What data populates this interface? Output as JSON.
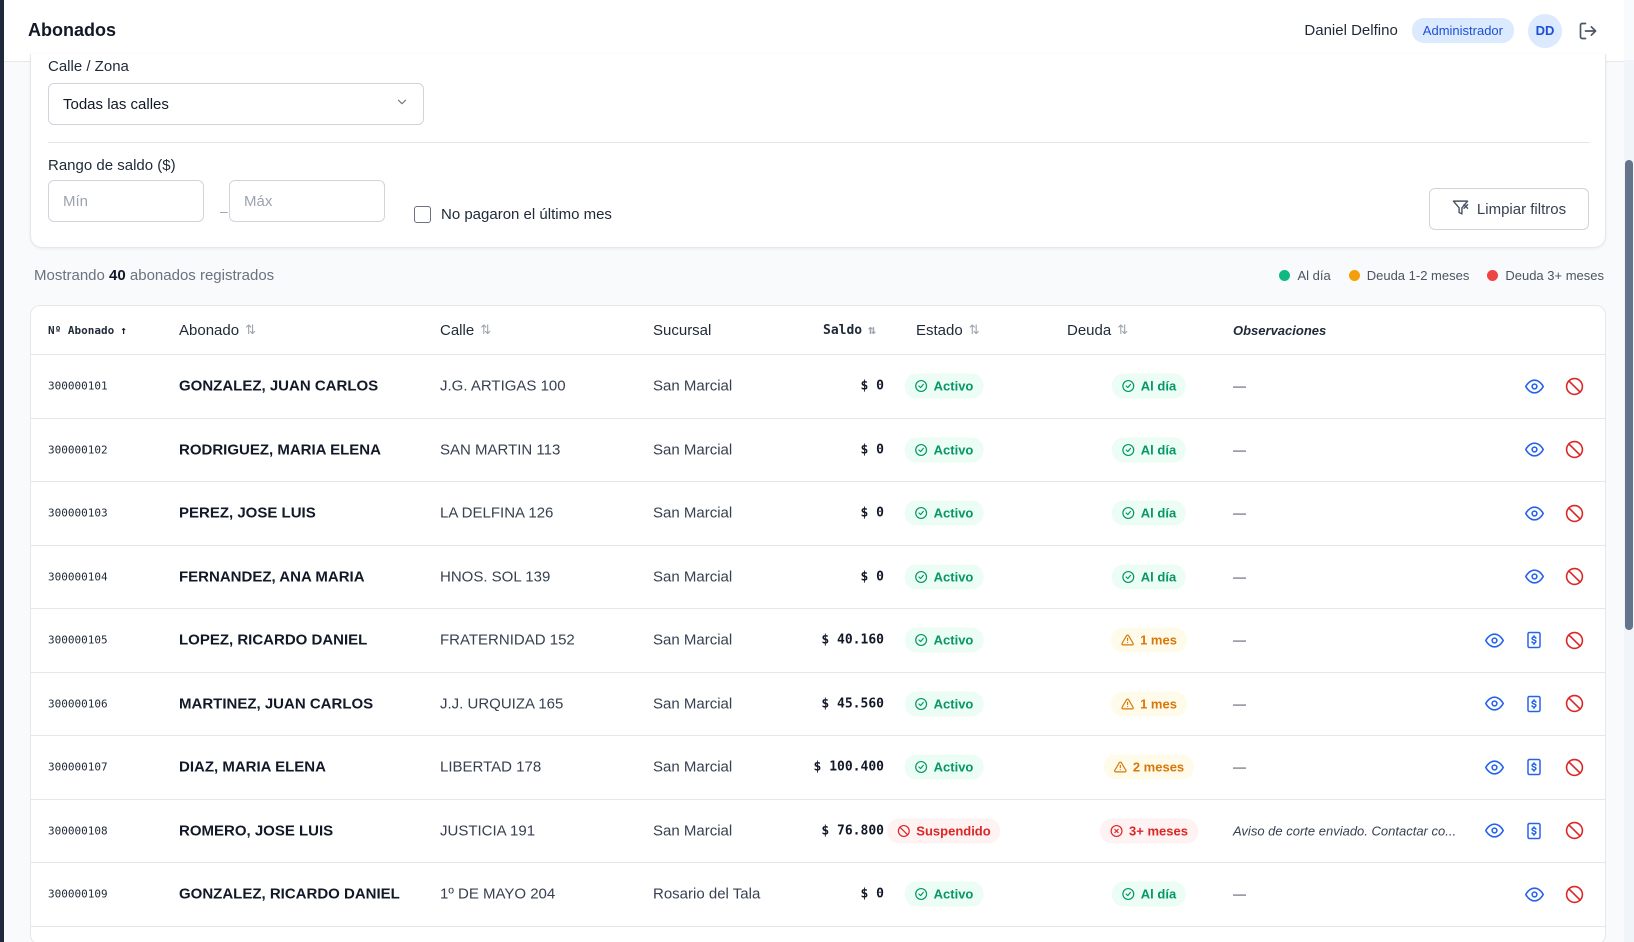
{
  "header": {
    "title": "Abonados",
    "user_name": "Daniel Delfino",
    "role": "Administrador",
    "avatar_initials": "DD"
  },
  "filters": {
    "street_label": "Calle / Zona",
    "street_value": "Todas las calles",
    "range_label": "Rango de saldo ($)",
    "min_placeholder": "Mín",
    "max_placeholder": "Máx",
    "range_separator": "–",
    "unpaid_label": "No pagaron el último mes",
    "clear_label": "Limpiar filtros"
  },
  "summary": {
    "prefix": "Mostrando",
    "count": "40",
    "suffix": "abonados registrados"
  },
  "legend": [
    {
      "label": "Al día",
      "color": "#10b981"
    },
    {
      "label": "Deuda 1-2 meses",
      "color": "#f59e0b"
    },
    {
      "label": "Deuda 3+ meses",
      "color": "#ef4444"
    }
  ],
  "columns": {
    "number": "Nº Abonado",
    "name": "Abonado",
    "street": "Calle",
    "branch": "Sucursal",
    "saldo": "Saldo",
    "estado": "Estado",
    "deuda": "Deuda",
    "obs": "Observaciones"
  },
  "rows": [
    {
      "number": "300000101",
      "name": "GONZALEZ, JUAN CARLOS",
      "street": "J.G. ARTIGAS 100",
      "branch": "San Marcial",
      "saldo": "$ 0",
      "estado": "Activo",
      "estado_type": "green",
      "deuda": "Al día",
      "deuda_type": "green",
      "obs": "—",
      "pay": false
    },
    {
      "number": "300000102",
      "name": "RODRIGUEZ, MARIA ELENA",
      "street": "SAN MARTIN 113",
      "branch": "San Marcial",
      "saldo": "$ 0",
      "estado": "Activo",
      "estado_type": "green",
      "deuda": "Al día",
      "deuda_type": "green",
      "obs": "—",
      "pay": false
    },
    {
      "number": "300000103",
      "name": "PEREZ, JOSE LUIS",
      "street": "LA DELFINA 126",
      "branch": "San Marcial",
      "saldo": "$ 0",
      "estado": "Activo",
      "estado_type": "green",
      "deuda": "Al día",
      "deuda_type": "green",
      "obs": "—",
      "pay": false
    },
    {
      "number": "300000104",
      "name": "FERNANDEZ, ANA MARIA",
      "street": "HNOS. SOL 139",
      "branch": "San Marcial",
      "saldo": "$ 0",
      "estado": "Activo",
      "estado_type": "green",
      "deuda": "Al día",
      "deuda_type": "green",
      "obs": "—",
      "pay": false
    },
    {
      "number": "300000105",
      "name": "LOPEZ, RICARDO DANIEL",
      "street": "FRATERNIDAD 152",
      "branch": "San Marcial",
      "saldo": "$ 40.160",
      "estado": "Activo",
      "estado_type": "green",
      "deuda": "1 mes",
      "deuda_type": "amber",
      "obs": "—",
      "pay": true
    },
    {
      "number": "300000106",
      "name": "MARTINEZ, JUAN CARLOS",
      "street": "J.J. URQUIZA 165",
      "branch": "San Marcial",
      "saldo": "$ 45.560",
      "estado": "Activo",
      "estado_type": "green",
      "deuda": "1 mes",
      "deuda_type": "amber",
      "obs": "—",
      "pay": true
    },
    {
      "number": "300000107",
      "name": "DIAZ, MARIA ELENA",
      "street": "LIBERTAD 178",
      "branch": "San Marcial",
      "saldo": "$ 100.400",
      "estado": "Activo",
      "estado_type": "green",
      "deuda": "2 meses",
      "deuda_type": "amber",
      "obs": "—",
      "pay": true
    },
    {
      "number": "300000108",
      "name": "ROMERO, JOSE LUIS",
      "street": "JUSTICIA 191",
      "branch": "San Marcial",
      "saldo": "$ 76.800",
      "estado": "Suspendido",
      "estado_type": "red",
      "deuda": "3+ meses",
      "deuda_type": "red",
      "obs": "Aviso de corte enviado. Contactar co...",
      "pay": true
    },
    {
      "number": "300000109",
      "name": "GONZALEZ, RICARDO DANIEL",
      "street": "1º DE MAYO 204",
      "branch": "Rosario del Tala",
      "saldo": "$ 0",
      "estado": "Activo",
      "estado_type": "green",
      "deuda": "Al día",
      "deuda_type": "green",
      "obs": "—",
      "pay": false
    }
  ]
}
